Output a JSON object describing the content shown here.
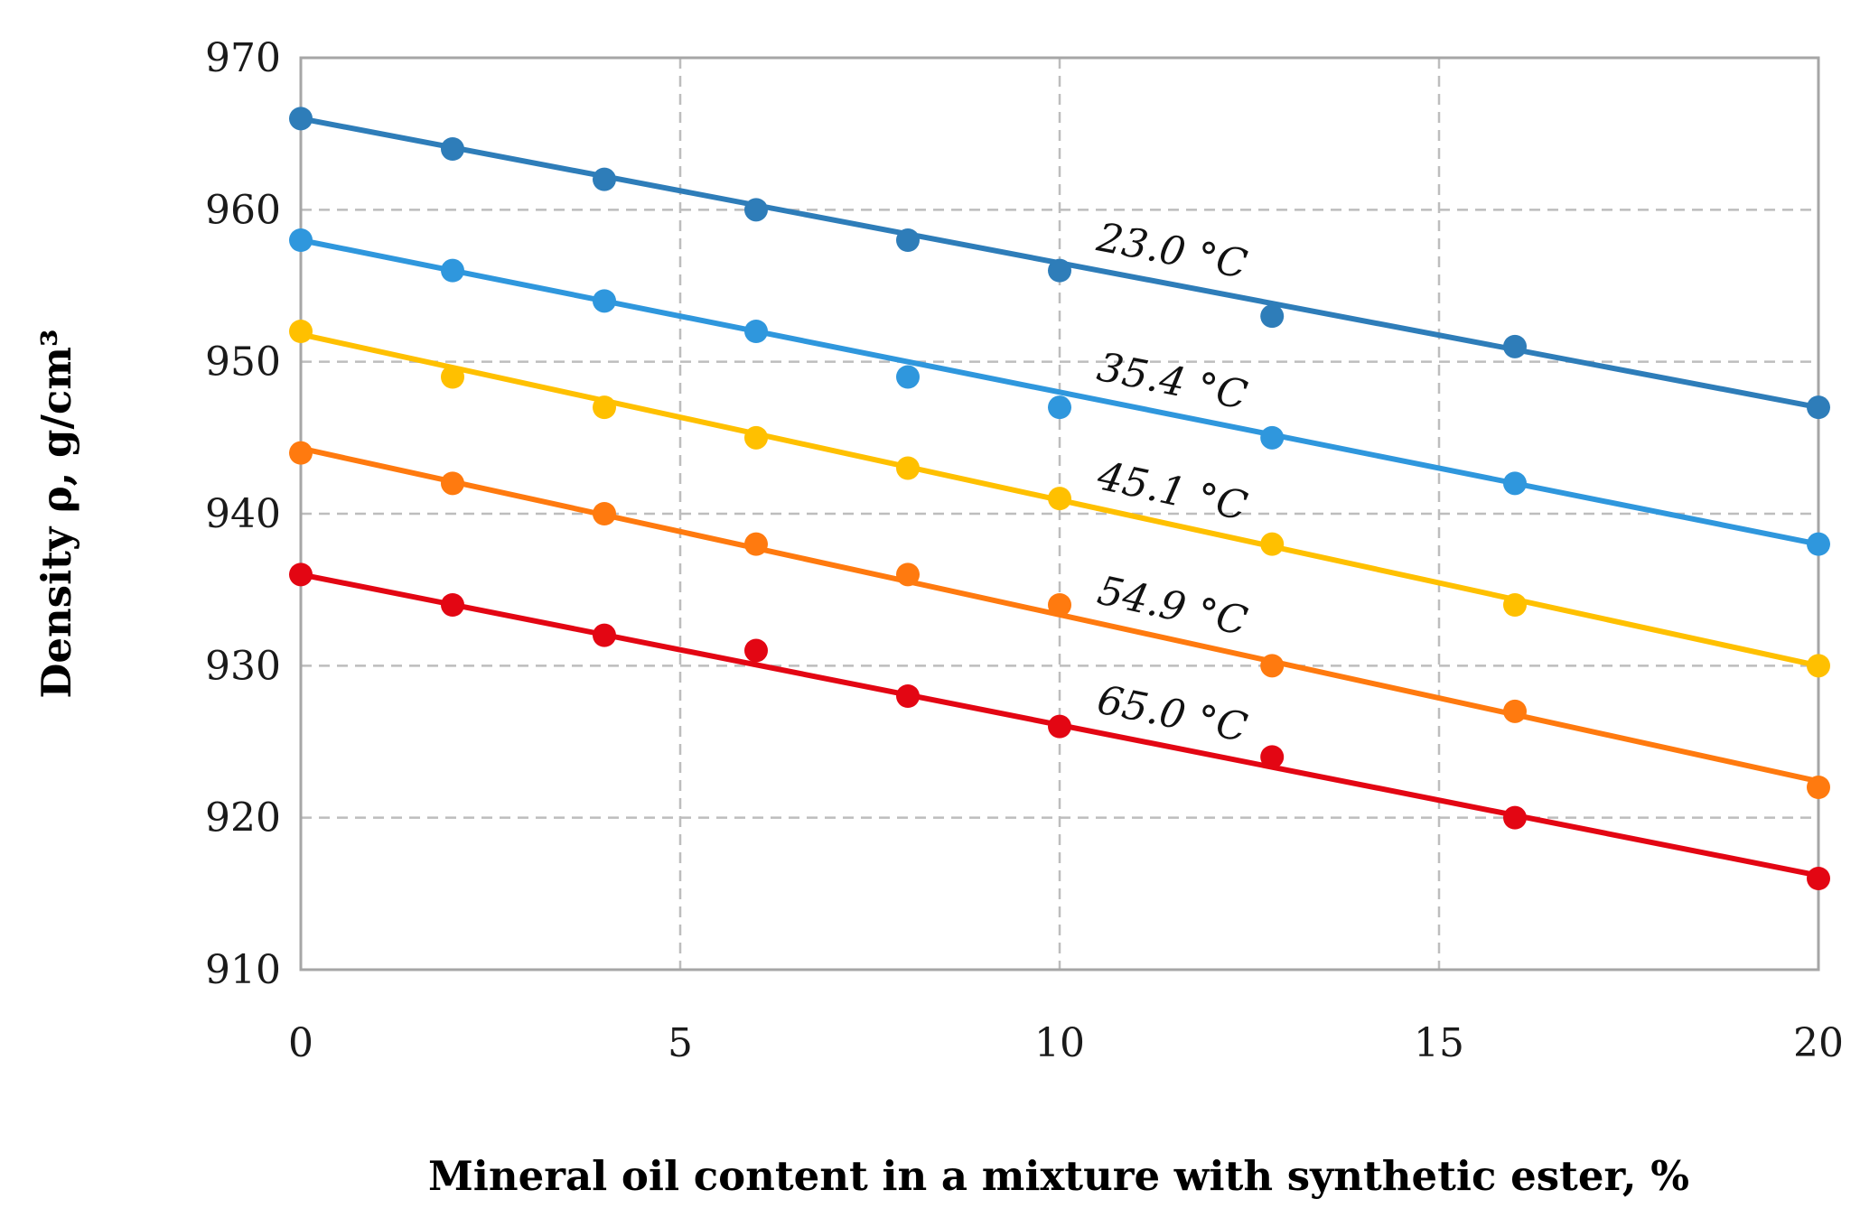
{
  "chart_data": {
    "type": "scatter",
    "title": "",
    "xlabel": "Mineral oil content in a mixture with synthetic ester, %",
    "ylabel": "Density ρ, g/cm³",
    "xlim": [
      0,
      20
    ],
    "ylim": [
      910,
      970
    ],
    "xticks": [
      "0",
      "5",
      "10",
      "15",
      "20"
    ],
    "yticks": [
      "910",
      "920",
      "930",
      "940",
      "950",
      "960",
      "970"
    ],
    "grid": true,
    "series": [
      {
        "name": "23.0 °C",
        "color": "#2E7DB9",
        "x": [
          0,
          2,
          4,
          6,
          8,
          10,
          12.8,
          16,
          20
        ],
        "values": [
          966,
          964,
          962,
          960,
          958,
          956,
          953,
          951,
          947
        ],
        "trend": [
          966,
          947
        ]
      },
      {
        "name": "35.4 °C",
        "color": "#2F97DD",
        "x": [
          0,
          2,
          4,
          6,
          8,
          10,
          12.8,
          16,
          20
        ],
        "values": [
          958,
          956,
          954,
          952,
          949,
          947,
          945,
          942,
          938
        ],
        "trend": [
          958,
          938
        ]
      },
      {
        "name": "45.1 °C",
        "color": "#FFC000",
        "x": [
          0,
          2,
          4,
          6,
          8,
          10,
          12.8,
          16,
          20
        ],
        "values": [
          952,
          949,
          947,
          945,
          943,
          941,
          938,
          934,
          930
        ],
        "trend": [
          951.8,
          930
        ]
      },
      {
        "name": "54.9 °C",
        "color": "#FF7A0F",
        "x": [
          0,
          2,
          4,
          6,
          8,
          10,
          12.8,
          16,
          20
        ],
        "values": [
          944,
          942,
          940,
          938,
          936,
          934,
          930,
          927,
          922
        ],
        "trend": [
          944.3,
          922.4
        ]
      },
      {
        "name": "65.0 °C",
        "color": "#E30613",
        "x": [
          0,
          2,
          4,
          6,
          8,
          10,
          12.8,
          16,
          20
        ],
        "values": [
          936,
          934,
          932,
          931,
          928,
          926,
          924,
          920,
          916
        ],
        "trend": [
          936,
          916.2
        ]
      }
    ]
  }
}
